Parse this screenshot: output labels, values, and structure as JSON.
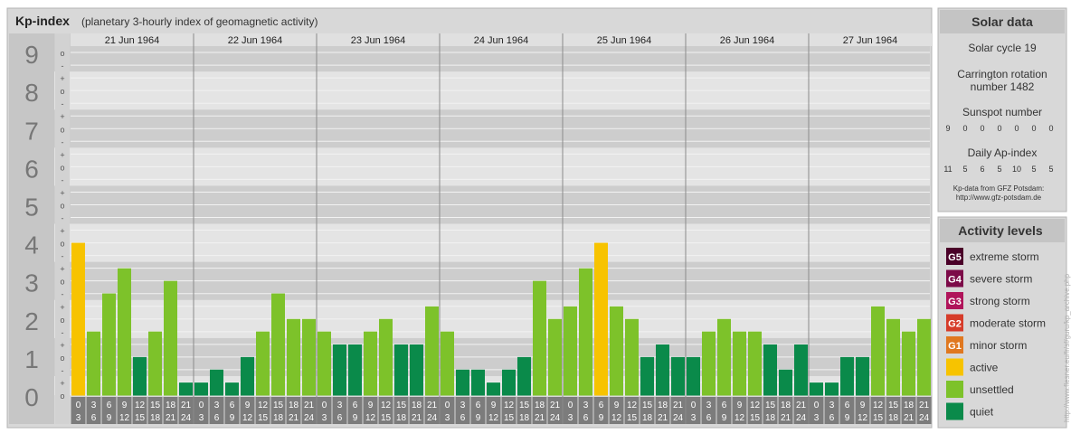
{
  "header": {
    "title": "Kp-index",
    "subtitle": "(planetary 3-hourly index of geomagnetic activity)"
  },
  "y_labels": [
    "9",
    "8",
    "7",
    "6",
    "5",
    "4",
    "3",
    "2",
    "1",
    "0"
  ],
  "minor_labels": [
    "o",
    "-",
    "+",
    "o",
    "-",
    "+",
    "o",
    "-",
    "+",
    "o",
    "-",
    "+",
    "o",
    "-",
    "+",
    "o",
    "-",
    "+",
    "o",
    "-",
    "+",
    "o",
    "-",
    "+",
    "o",
    "-",
    "+",
    "o"
  ],
  "hour_start_labels": [
    "0",
    "3",
    "6",
    "9",
    "12",
    "15",
    "18",
    "21"
  ],
  "hour_end_labels": [
    "3",
    "6",
    "9",
    "12",
    "15",
    "18",
    "21",
    "24"
  ],
  "colors": {
    "quiet": "#0a8a4a",
    "unsettled": "#7dc22a",
    "active": "#f7c300",
    "G1": "#e07820",
    "G2": "#d63c2a",
    "G3": "#b0145a",
    "G4": "#7c0a48",
    "G5": "#4a0028"
  },
  "chart_data": {
    "type": "bar",
    "title": "Kp-index",
    "subtitle": "(planetary 3-hourly index of geomagnetic activity)",
    "days": [
      "21 Jun 1964",
      "22 Jun 1964",
      "23 Jun 1964",
      "24 Jun 1964",
      "25 Jun 1964",
      "26 Jun 1964",
      "27 Jun 1964"
    ],
    "intervals_per_day": 8,
    "ylim": [
      0,
      9
    ],
    "values": [
      4.0,
      1.67,
      2.67,
      3.33,
      1.0,
      1.67,
      3.0,
      0.33,
      0.33,
      0.67,
      0.33,
      1.0,
      1.67,
      2.67,
      2.0,
      2.0,
      1.67,
      1.33,
      1.33,
      1.67,
      2.0,
      1.33,
      1.33,
      2.33,
      1.67,
      0.67,
      0.67,
      0.33,
      0.67,
      1.0,
      3.0,
      2.0,
      2.33,
      3.33,
      4.0,
      2.33,
      2.0,
      1.0,
      1.33,
      1.0,
      1.0,
      1.67,
      2.0,
      1.67,
      1.67,
      1.33,
      0.67,
      1.33,
      0.33,
      0.33,
      1.0,
      1.0,
      2.33,
      2.0,
      1.67,
      2.0
    ]
  },
  "solar_data": {
    "title": "Solar data",
    "cycle": "Solar cycle 19",
    "carrington": "Carrington rotation number 1482",
    "sunspot_title": "Sunspot number",
    "sunspot_values": [
      "9",
      "0",
      "0",
      "0",
      "0",
      "0",
      "0"
    ],
    "ap_title": "Daily Ap-index",
    "ap_values": [
      "11",
      "5",
      "6",
      "5",
      "10",
      "5",
      "5"
    ],
    "source_line1": "Kp-data from GFZ Potsdam:",
    "source_line2": "http://www.gfz-potsdam.de"
  },
  "activity_levels": {
    "title": "Activity levels",
    "items": [
      {
        "badge": "G5",
        "label": "extreme storm",
        "color": "#4a0028"
      },
      {
        "badge": "G4",
        "label": "severe storm",
        "color": "#7c0a48"
      },
      {
        "badge": "G3",
        "label": "strong storm",
        "color": "#b0145a"
      },
      {
        "badge": "G2",
        "label": "moderate storm",
        "color": "#d63c2a"
      },
      {
        "badge": "G1",
        "label": "minor storm",
        "color": "#e07820"
      },
      {
        "badge": "",
        "label": "active",
        "color": "#f7c300"
      },
      {
        "badge": "",
        "label": "unsettled",
        "color": "#7dc22a"
      },
      {
        "badge": "",
        "label": "quiet",
        "color": "#0a8a4a"
      }
    ]
  },
  "watermark": "http://www.flesner.eu/fr/sf/guru/kp_archive.php"
}
